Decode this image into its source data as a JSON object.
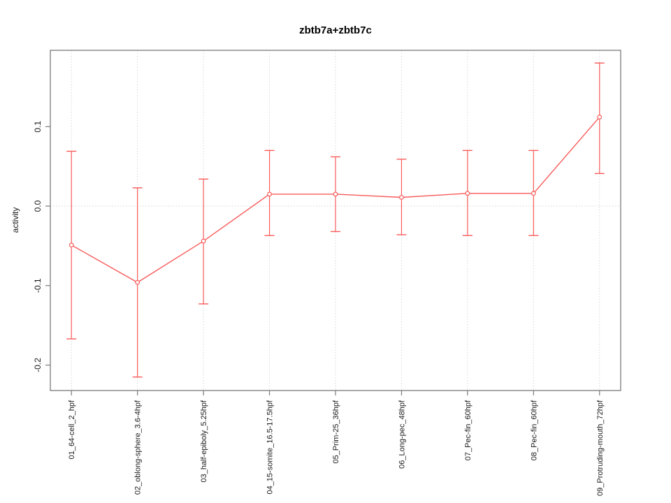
{
  "page": {
    "background": "#ffffff"
  },
  "chart_data": {
    "type": "line",
    "title": "zbtb7a+zbtb7c",
    "xlabel": "",
    "ylabel": "activity",
    "categories": [
      "01_64-cell_2_hpf",
      "02_oblong-sphere_3.6-4hpf",
      "03_half-epiboly_5.25hpf",
      "04_15-somite_16.5-17.5hpf",
      "05_Prim-25_36hpf",
      "06_Long-pec_48hpf",
      "07_Pec-fin_60hpf",
      "08_Pec-fin_60hpf",
      "09_Protruding-mouth_72hpf"
    ],
    "series": [
      {
        "name": "activity",
        "marker": "open-circle",
        "values": [
          -0.049,
          -0.096,
          -0.044,
          0.015,
          0.015,
          0.011,
          0.016,
          0.016,
          0.112
        ],
        "error_upper": [
          0.069,
          0.023,
          0.034,
          0.07,
          0.062,
          0.059,
          0.07,
          0.07,
          0.18
        ],
        "error_lower": [
          -0.167,
          -0.215,
          -0.123,
          -0.037,
          -0.032,
          -0.036,
          -0.037,
          -0.037,
          0.041
        ]
      }
    ],
    "ytick_labels": [
      "-0.2",
      "-0.1",
      "0.0",
      "0.1"
    ],
    "ytick_values": [
      -0.2,
      -0.1,
      0.0,
      0.1
    ],
    "ylim": [
      -0.232,
      0.196
    ],
    "grid": "dotted vertical line at each category, dotted horizontal line at y=0",
    "legend_position": "none",
    "colors": {
      "series": "#FA5A5A",
      "grid": "#D6D6D6",
      "box": "#7A7A7A",
      "tick": "#7A7A7A",
      "text": "#1A1A1A",
      "title": "#000000",
      "marker_fill": "#FFFFFF"
    }
  }
}
